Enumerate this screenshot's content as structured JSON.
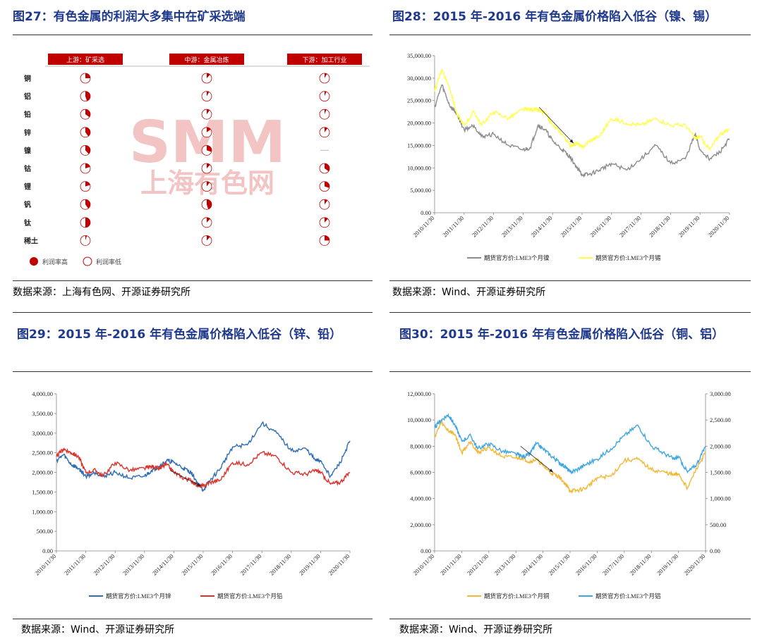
{
  "fig27": {
    "title": "图27：有色金属的利润大多集中在矿采选端",
    "source": "数据来源：上海有色网、开源证券研究所",
    "headers": [
      "上游：矿采选",
      "中游：金属冶炼",
      "下游：加工行业"
    ],
    "rows": [
      "铜",
      "铝",
      "铅",
      "锌",
      "镍",
      "钴",
      "锂",
      "钒",
      "钛",
      "稀土"
    ],
    "fractions": [
      [
        0.25,
        0.12,
        0.08
      ],
      [
        0.45,
        0.08,
        0.06
      ],
      [
        0.35,
        0.1,
        0.06
      ],
      [
        0.4,
        0.15,
        0.1
      ],
      [
        0.38,
        0.3,
        null
      ],
      [
        0.2,
        0.12,
        0.35
      ],
      [
        0.2,
        0.1,
        0.3
      ],
      [
        0.4,
        0.45,
        0.1
      ],
      [
        0.5,
        0.12,
        0.12
      ],
      [
        0.05,
        0.12,
        0.25
      ]
    ],
    "legend_high": "利润率高",
    "legend_low": "利润率低",
    "watermark_big": "SMM",
    "watermark_small": "上海有色网"
  },
  "fig28": {
    "title": "图28：2015 年-2016 年有色金属价格陷入低谷（镍、锡）",
    "source": "数据来源：Wind、开源证券研究所"
  },
  "fig29": {
    "title": "图29：2015 年-2016 年有色金属价格陷入低谷（锌、铅）",
    "source": "数据来源：Wind、开源证券研究所"
  },
  "fig30": {
    "title": "图30：2015 年-2016 年有色金属价格陷入低谷（铜、铝）",
    "source": "数据来源：Wind、开源证券研究所"
  },
  "colors": {
    "title": "#1f3a8c",
    "red": "#c00000",
    "gray": "#8c8c8c",
    "yellow": "#ffff44",
    "blue": "#2e6db4",
    "red_line": "#e0302a",
    "orange": "#f2b838",
    "lightblue": "#3fa7e0"
  },
  "chart_data": [
    {
      "type": "line",
      "x_ticks": [
        "2010/11/30",
        "2011/11/30",
        "2012/11/30",
        "2013/11/30",
        "2014/11/30",
        "2015/11/30",
        "2016/11/30",
        "2017/11/30",
        "2018/11/30",
        "2019/11/30",
        "2020/11/30"
      ],
      "y_ticks": [
        "0.00",
        "5,000.00",
        "10,000.00",
        "15,000.00",
        "20,000.00",
        "25,000.00",
        "30,000.00",
        "35,000.00"
      ],
      "ylim": [
        0,
        35000
      ],
      "series": [
        {
          "name": "期货官方价:LME3个月镍",
          "color": "#8c8c8c",
          "x": [
            "2010/11/30",
            "2011/02/28",
            "2011/05/31",
            "2011/08/31",
            "2011/11/30",
            "2012/03/31",
            "2012/06/30",
            "2012/11/30",
            "2013/05/31",
            "2013/11/30",
            "2014/02/28",
            "2014/05/31",
            "2014/08/31",
            "2014/11/30",
            "2015/03/31",
            "2015/06/30",
            "2015/09/30",
            "2015/11/30",
            "2016/02/28",
            "2016/06/30",
            "2016/11/30",
            "2017/05/31",
            "2017/11/30",
            "2018/05/31",
            "2018/11/30",
            "2019/05/31",
            "2019/09/30",
            "2019/11/30",
            "2020/03/31",
            "2020/07/31",
            "2020/11/30"
          ],
          "values": [
            23500,
            28500,
            24000,
            22000,
            18500,
            19500,
            17000,
            17500,
            15000,
            14000,
            14500,
            19500,
            18500,
            16000,
            14000,
            12500,
            10000,
            8500,
            8500,
            9500,
            11000,
            9500,
            12000,
            15000,
            11000,
            12000,
            17500,
            14000,
            12000,
            13500,
            16500
          ]
        },
        {
          "name": "期货官方价:LME3个月锡",
          "color": "#ffff44",
          "x": [
            "2010/11/30",
            "2011/02/28",
            "2011/05/31",
            "2011/08/31",
            "2011/11/30",
            "2012/03/31",
            "2012/06/30",
            "2012/11/30",
            "2013/05/31",
            "2013/11/30",
            "2014/02/28",
            "2014/05/31",
            "2014/08/31",
            "2014/11/30",
            "2015/03/31",
            "2015/06/30",
            "2015/09/30",
            "2015/11/30",
            "2016/02/28",
            "2016/06/30",
            "2016/11/30",
            "2017/05/31",
            "2017/11/30",
            "2018/05/31",
            "2018/11/30",
            "2019/05/31",
            "2019/09/30",
            "2019/11/30",
            "2020/03/31",
            "2020/07/31",
            "2020/11/30"
          ],
          "values": [
            27000,
            32000,
            28000,
            22000,
            19500,
            22500,
            19500,
            22500,
            21000,
            23000,
            23000,
            23000,
            22000,
            19500,
            17500,
            15000,
            15500,
            14500,
            16000,
            17000,
            21000,
            20000,
            19500,
            21000,
            19500,
            19500,
            16500,
            17000,
            14000,
            17500,
            18500
          ]
        }
      ]
    },
    {
      "type": "line",
      "x_ticks": [
        "2010/11/30",
        "2011/11/30",
        "2012/11/30",
        "2013/11/30",
        "2014/11/30",
        "2015/11/30",
        "2016/11/30",
        "2017/11/30",
        "2018/11/30",
        "2019/11/30",
        "2020/11/30"
      ],
      "y_ticks": [
        "0.00",
        "500.00",
        "1,000.00",
        "1,500.00",
        "2,000.00",
        "2,500.00",
        "3,000.00",
        "3,500.00",
        "4,000.00"
      ],
      "ylim": [
        0,
        4000
      ],
      "series": [
        {
          "name": "期货官方价:LME3个月锌",
          "color": "#2e6db4",
          "x": [
            "2010/11/30",
            "2011/02/28",
            "2011/05/31",
            "2011/08/31",
            "2011/11/30",
            "2012/03/31",
            "2012/06/30",
            "2012/11/30",
            "2013/05/31",
            "2013/11/30",
            "2014/02/28",
            "2014/05/31",
            "2014/08/31",
            "2014/11/30",
            "2015/03/31",
            "2015/06/30",
            "2015/09/30",
            "2015/11/30",
            "2016/02/28",
            "2016/06/30",
            "2016/11/30",
            "2017/05/31",
            "2017/11/30",
            "2018/05/31",
            "2018/11/30",
            "2019/05/31",
            "2019/09/30",
            "2019/11/30",
            "2020/03/31",
            "2020/07/31",
            "2020/11/30"
          ],
          "values": [
            2300,
            2450,
            2200,
            2100,
            1900,
            2000,
            1900,
            2000,
            1850,
            1900,
            2050,
            2150,
            2300,
            2250,
            2100,
            2000,
            1700,
            1550,
            1800,
            2100,
            2650,
            2700,
            3250,
            3000,
            2550,
            2600,
            2300,
            2300,
            1900,
            2250,
            2800
          ]
        },
        {
          "name": "期货官方价:LME3个月铅",
          "color": "#e0302a",
          "x": [
            "2010/11/30",
            "2011/02/28",
            "2011/05/31",
            "2011/08/31",
            "2011/11/30",
            "2012/03/31",
            "2012/06/30",
            "2012/11/30",
            "2013/05/31",
            "2013/11/30",
            "2014/02/28",
            "2014/05/31",
            "2014/08/31",
            "2014/11/30",
            "2015/03/31",
            "2015/06/30",
            "2015/09/30",
            "2015/11/30",
            "2016/02/28",
            "2016/06/30",
            "2016/11/30",
            "2017/05/31",
            "2017/11/30",
            "2018/05/31",
            "2018/11/30",
            "2019/05/31",
            "2019/09/30",
            "2019/11/30",
            "2020/03/31",
            "2020/07/31",
            "2020/11/30"
          ],
          "values": [
            2400,
            2600,
            2500,
            2400,
            2000,
            2050,
            1900,
            2250,
            2050,
            2100,
            2150,
            2100,
            2200,
            2000,
            1850,
            1800,
            1650,
            1650,
            1750,
            1800,
            2250,
            2200,
            2500,
            2400,
            2000,
            1950,
            2050,
            2000,
            1700,
            1750,
            2000
          ]
        }
      ]
    },
    {
      "type": "line",
      "x_ticks": [
        "2010/11/30",
        "2011/11/30",
        "2012/11/30",
        "2013/11/30",
        "2014/11/30",
        "2015/11/30",
        "2016/11/30",
        "2017/11/30",
        "2018/11/30",
        "2019/11/30",
        "2020/11/30"
      ],
      "y_ticks": [
        "0.00",
        "2,000.00",
        "4,000.00",
        "6,000.00",
        "8,000.00",
        "10,000.00",
        "12,000.00"
      ],
      "y2_ticks": [
        "0.00",
        "500.00",
        "1,000.00",
        "1,500.00",
        "2,000.00",
        "2,500.00",
        "3,000.00"
      ],
      "ylim": [
        0,
        12000
      ],
      "y2lim": [
        0,
        3000
      ],
      "series": [
        {
          "name": "期货官方价:LME3个月铜",
          "color": "#f2b838",
          "axis": "left",
          "x": [
            "2010/11/30",
            "2011/02/28",
            "2011/05/31",
            "2011/08/31",
            "2011/11/30",
            "2012/03/31",
            "2012/06/30",
            "2012/11/30",
            "2013/05/31",
            "2013/11/30",
            "2014/02/28",
            "2014/05/31",
            "2014/08/31",
            "2014/11/30",
            "2015/03/31",
            "2015/06/30",
            "2015/09/30",
            "2015/11/30",
            "2016/02/28",
            "2016/06/30",
            "2016/11/30",
            "2017/05/31",
            "2017/11/30",
            "2018/05/31",
            "2018/11/30",
            "2019/05/31",
            "2019/09/30",
            "2019/11/30",
            "2020/03/31",
            "2020/07/31",
            "2020/11/30"
          ],
          "values": [
            8700,
            9800,
            9200,
            8900,
            7500,
            8400,
            7500,
            7900,
            7200,
            7100,
            7100,
            6800,
            7000,
            6500,
            5900,
            5700,
            5100,
            4600,
            4600,
            4800,
            5600,
            5700,
            6900,
            7000,
            6200,
            6000,
            5800,
            5900,
            4800,
            6300,
            7500
          ]
        },
        {
          "name": "期货官方价:LME3个月铝",
          "color": "#3fa7e0",
          "axis": "right",
          "x": [
            "2010/11/30",
            "2011/02/28",
            "2011/05/31",
            "2011/08/31",
            "2011/11/30",
            "2012/03/31",
            "2012/06/30",
            "2012/11/30",
            "2013/05/31",
            "2013/11/30",
            "2014/02/28",
            "2014/05/31",
            "2014/08/31",
            "2014/11/30",
            "2015/03/31",
            "2015/06/30",
            "2015/09/30",
            "2015/11/30",
            "2016/02/28",
            "2016/06/30",
            "2016/11/30",
            "2017/05/31",
            "2017/11/30",
            "2018/05/31",
            "2018/11/30",
            "2019/05/31",
            "2019/09/30",
            "2019/11/30",
            "2020/03/31",
            "2020/07/31",
            "2020/11/30"
          ],
          "values": [
            2350,
            2500,
            2600,
            2400,
            2100,
            2200,
            1950,
            2050,
            1900,
            1850,
            1800,
            1850,
            2050,
            1950,
            1800,
            1700,
            1600,
            1500,
            1550,
            1650,
            1750,
            1950,
            2200,
            2400,
            2000,
            1850,
            1750,
            1800,
            1500,
            1650,
            2000
          ]
        }
      ]
    }
  ]
}
